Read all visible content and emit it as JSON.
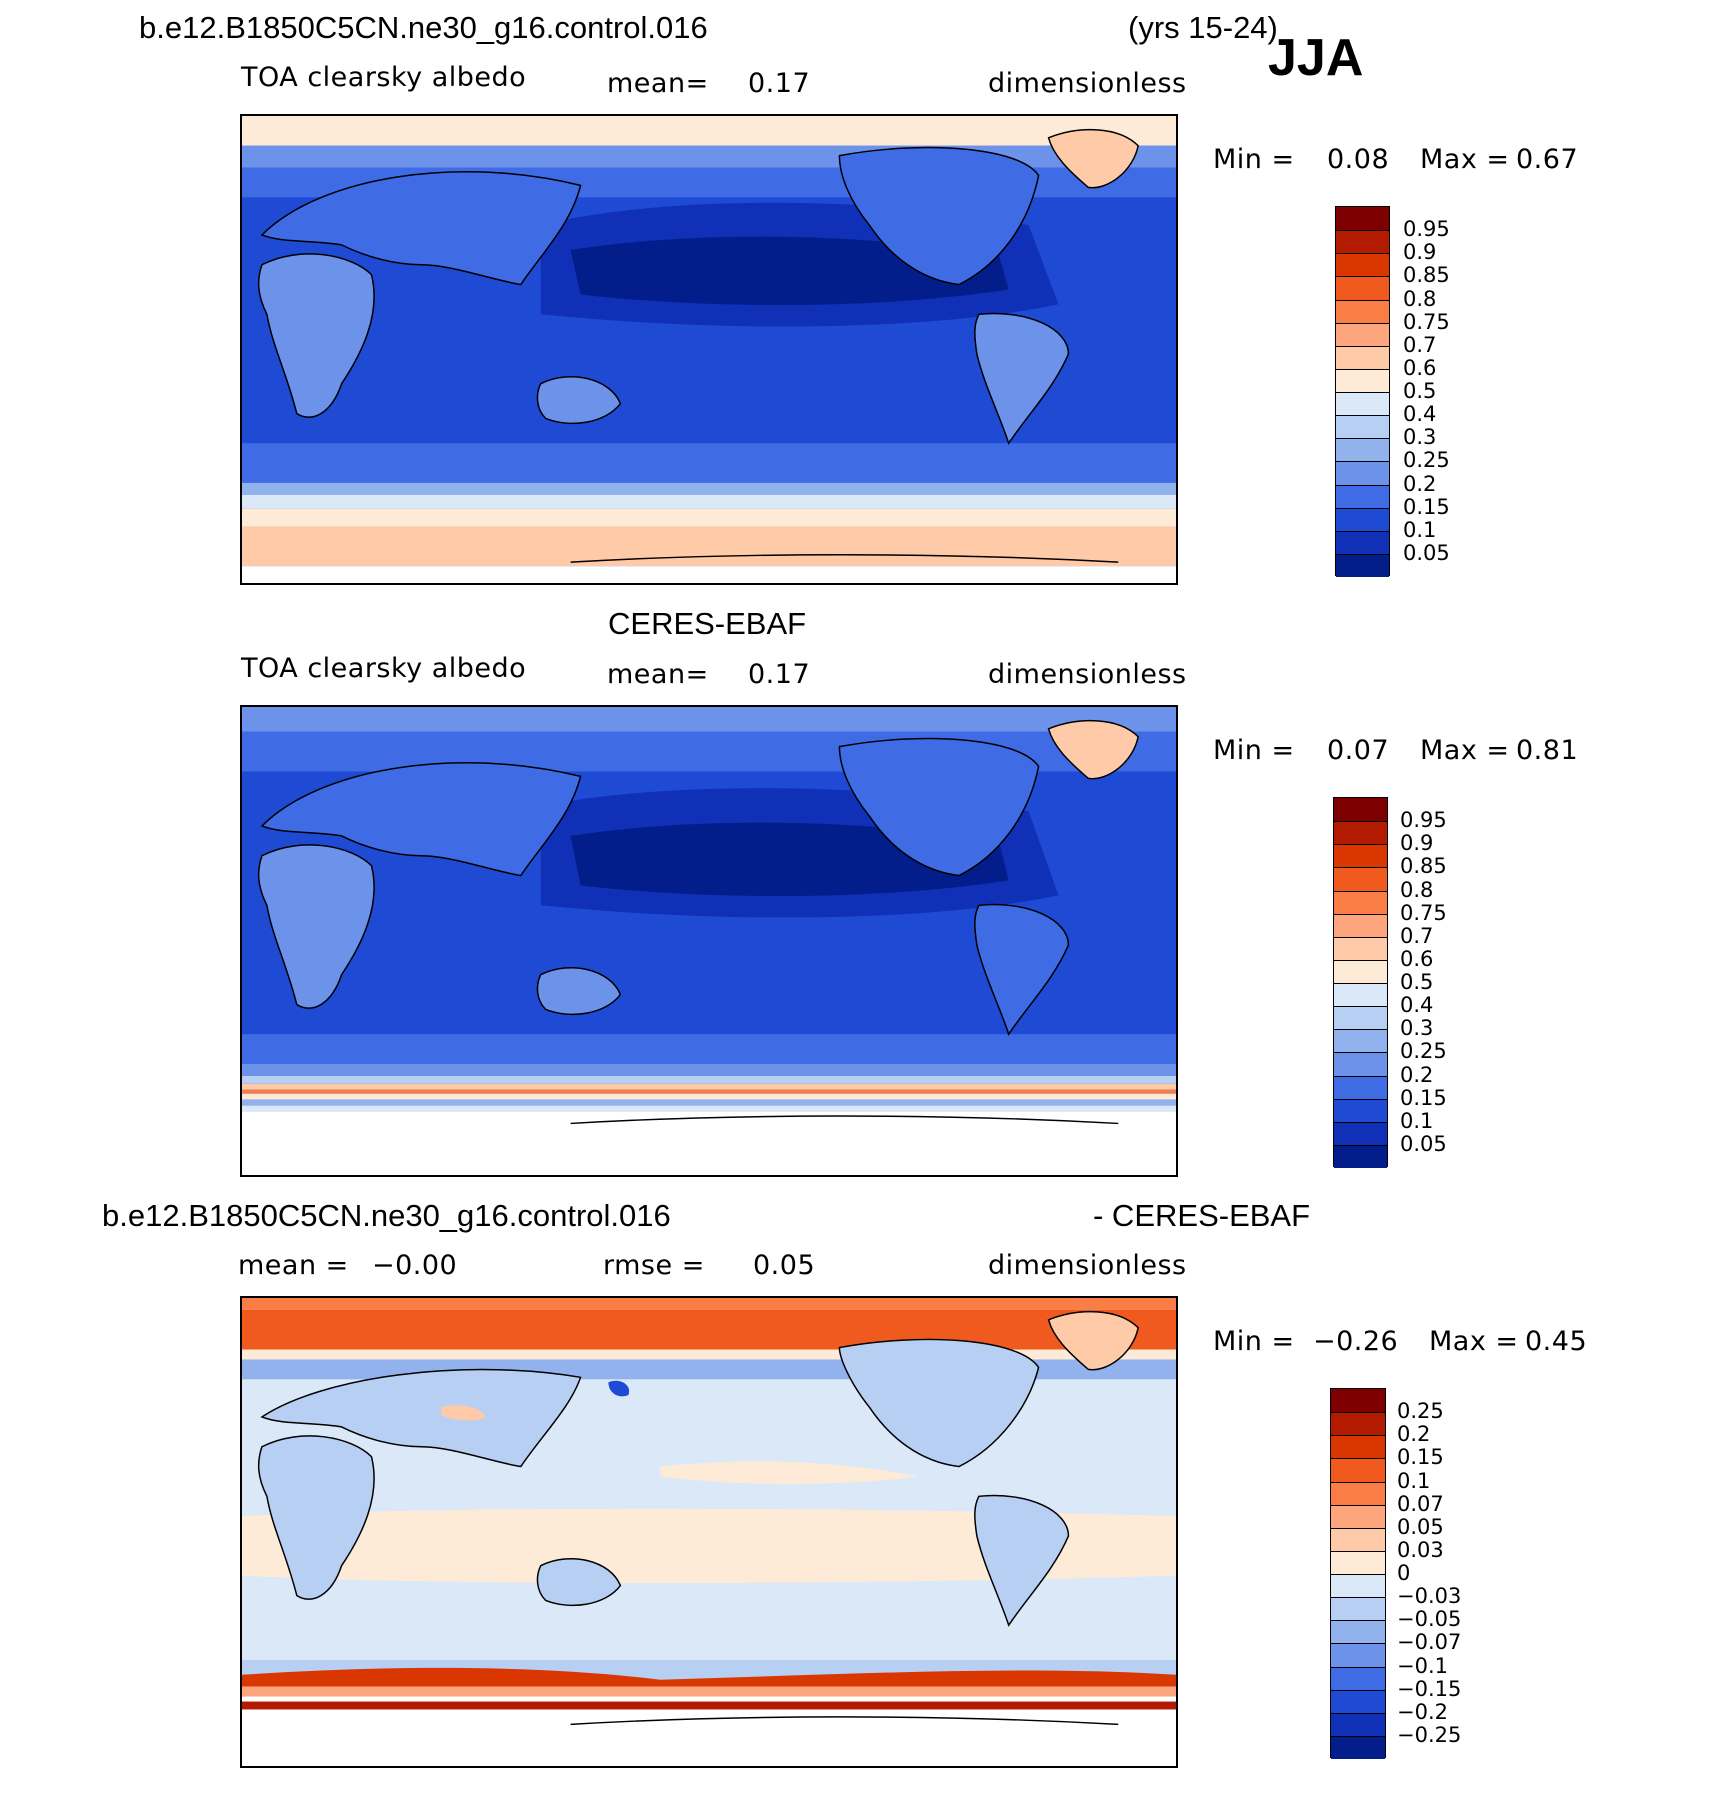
{
  "header": {
    "case": "b.e12.B1850C5CN.ne30_g16.control.016",
    "years": "(yrs 15-24)",
    "season": "JJA"
  },
  "panel1": {
    "variable": "TOA clearsky albedo",
    "mean_label": "mean=",
    "mean": "0.17",
    "units": "dimensionless",
    "min_label": "Min =",
    "min": "0.08",
    "max_label": "Max =",
    "max": "0.67"
  },
  "panel2": {
    "title": "CERES-EBAF",
    "variable": "TOA clearsky albedo",
    "mean_label": "mean=",
    "mean": "0.17",
    "units": "dimensionless",
    "min_label": "Min =",
    "min": "0.07",
    "max_label": "Max =",
    "max": "0.81"
  },
  "panel3": {
    "title_left": "b.e12.B1850C5CN.ne30_g16.control.016",
    "title_right": "- CERES-EBAF",
    "mean_label": "mean =",
    "mean": "−0.00",
    "rmse_label": "rmse =",
    "rmse": "0.05",
    "units": "dimensionless",
    "min_label": "Min =",
    "min": "−0.26",
    "max_label": "Max =",
    "max": "0.45"
  },
  "colorbar_abs": {
    "labels": [
      "0.95",
      "0.9",
      "0.85",
      "0.8",
      "0.75",
      "0.7",
      "0.6",
      "0.5",
      "0.4",
      "0.3",
      "0.25",
      "0.2",
      "0.15",
      "0.1",
      "0.05"
    ],
    "colors": [
      "#7f0000",
      "#b31b00",
      "#d93600",
      "#f05a1f",
      "#fa7d45",
      "#fda57c",
      "#fecaa8",
      "#fdebd8",
      "#dbe8f8",
      "#b7cff2",
      "#92b2ee",
      "#6c92ea",
      "#3f6ce4",
      "#1f4bd4",
      "#1030b8",
      "#031e8a"
    ]
  },
  "colorbar_diff": {
    "labels": [
      "0.25",
      "0.2",
      "0.15",
      "0.1",
      "0.07",
      "0.05",
      "0.03",
      "0",
      "−0.03",
      "−0.05",
      "−0.07",
      "−0.1",
      "−0.15",
      "−0.2",
      "−0.25"
    ],
    "colors": [
      "#7f0000",
      "#b31b00",
      "#d93600",
      "#f05a1f",
      "#fa7d45",
      "#fda57c",
      "#fecaa8",
      "#fdebd8",
      "#dbe8f8",
      "#b7cff2",
      "#92b2ee",
      "#6c92ea",
      "#3f6ce4",
      "#1f4bd4",
      "#1030b8",
      "#031e8a"
    ]
  }
}
